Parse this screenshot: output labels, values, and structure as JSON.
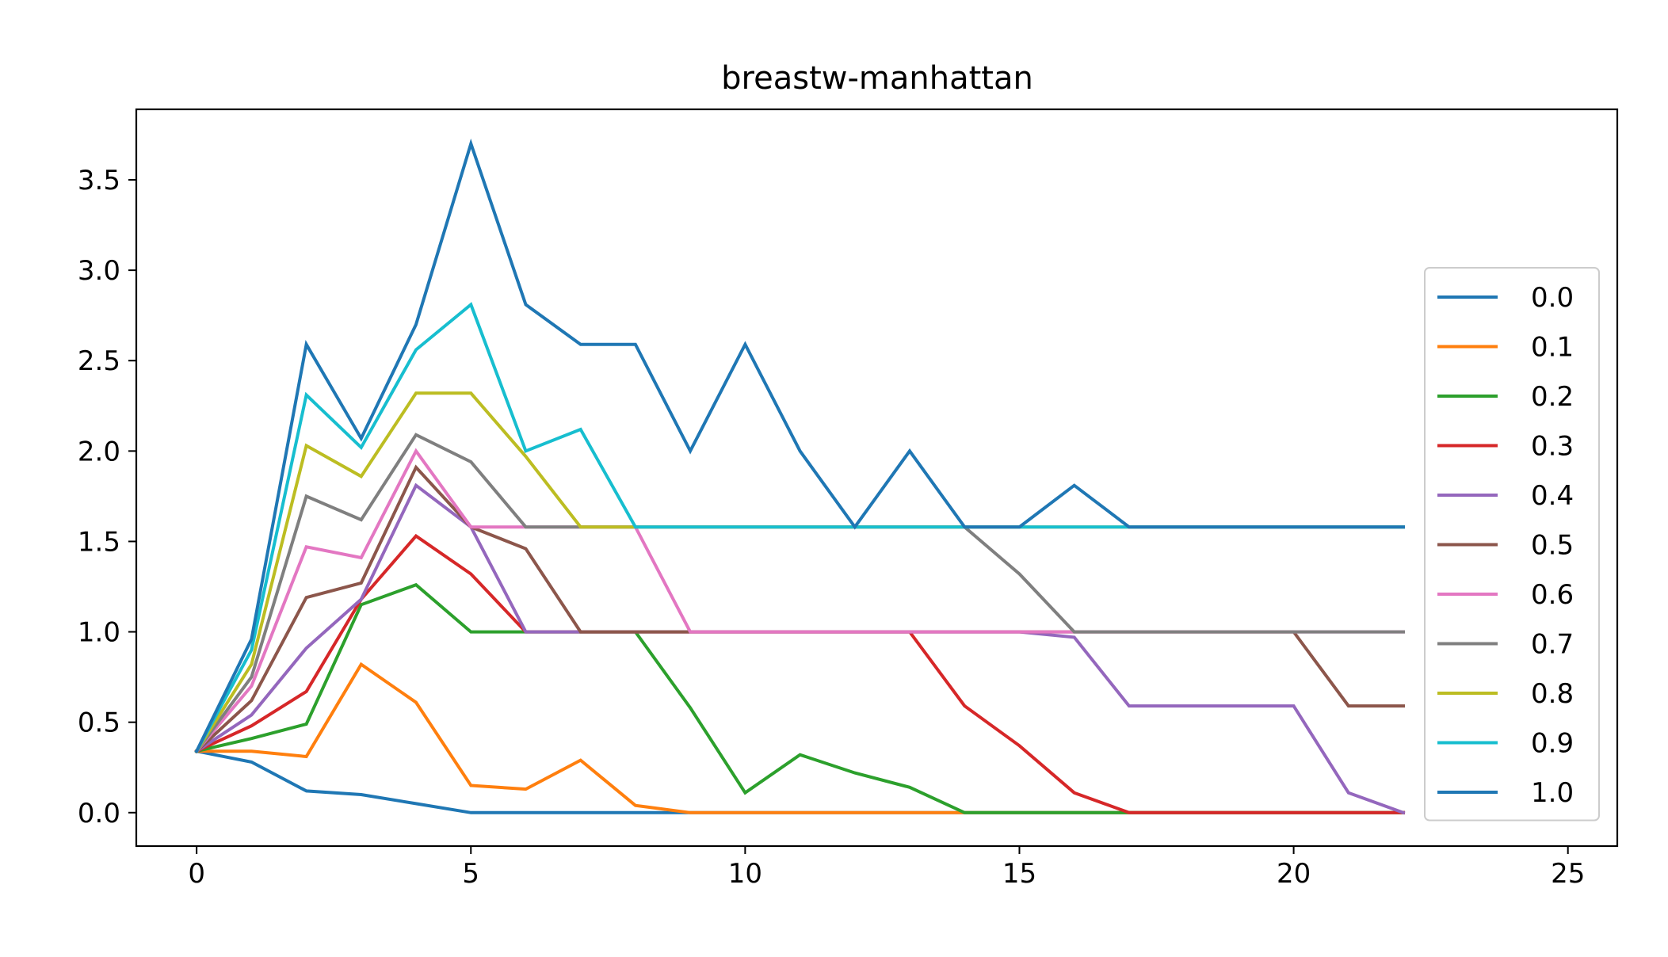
{
  "chart_data": {
    "type": "line",
    "title": "breastw-manhattan",
    "xlabel": "",
    "ylabel": "",
    "xlim": [
      -1.1,
      25.9
    ],
    "ylim": [
      -0.185,
      3.89
    ],
    "xticks": [
      0,
      5,
      10,
      15,
      20,
      25
    ],
    "yticks": [
      0.0,
      0.5,
      1.0,
      1.5,
      2.0,
      2.5,
      3.0,
      3.5
    ],
    "xtick_labels": [
      "0",
      "5",
      "10",
      "15",
      "20",
      "25"
    ],
    "ytick_labels": [
      "0.0",
      "0.5",
      "1.0",
      "1.5",
      "2.0",
      "2.5",
      "3.0",
      "3.5"
    ],
    "grid": false,
    "legend_position": "center-right",
    "x": [
      0,
      1,
      2,
      3,
      4,
      5,
      6,
      7,
      8,
      9,
      10,
      11,
      12,
      13,
      14,
      15,
      16,
      17,
      18,
      19,
      20,
      21,
      22
    ],
    "series": [
      {
        "name": "0.0",
        "color": "#1f77b4",
        "values": [
          0.34,
          0.28,
          0.12,
          0.1,
          0.05,
          0.0,
          0.0,
          0.0,
          0.0,
          0.0,
          0.0,
          0.0,
          0.0,
          0.0,
          0.0,
          0.0,
          0.0,
          0.0,
          0.0,
          0.0,
          0.0,
          0.0,
          0.0
        ]
      },
      {
        "name": "0.1",
        "color": "#ff7f0e",
        "values": [
          0.34,
          0.34,
          0.31,
          0.82,
          0.61,
          0.15,
          0.13,
          0.29,
          0.04,
          0.0,
          0.0,
          0.0,
          0.0,
          0.0,
          0.0,
          0.0,
          0.0,
          0.0,
          0.0,
          0.0,
          0.0,
          0.0,
          0.0
        ]
      },
      {
        "name": "0.2",
        "color": "#2ca02c",
        "values": [
          0.34,
          0.41,
          0.49,
          1.15,
          1.26,
          1.0,
          1.0,
          1.0,
          1.0,
          0.58,
          0.11,
          0.32,
          0.22,
          0.14,
          0.0,
          0.0,
          0.0,
          0.0,
          0.0,
          0.0,
          0.0,
          0.0,
          0.0
        ]
      },
      {
        "name": "0.3",
        "color": "#d62728",
        "values": [
          0.34,
          0.48,
          0.67,
          1.18,
          1.53,
          1.32,
          1.0,
          1.0,
          1.0,
          1.0,
          1.0,
          1.0,
          1.0,
          1.0,
          0.59,
          0.37,
          0.11,
          0.0,
          0.0,
          0.0,
          0.0,
          0.0,
          0.0
        ]
      },
      {
        "name": "0.4",
        "color": "#9467bd",
        "values": [
          0.34,
          0.54,
          0.91,
          1.18,
          1.81,
          1.58,
          1.0,
          1.0,
          1.0,
          1.0,
          1.0,
          1.0,
          1.0,
          1.0,
          1.0,
          1.0,
          0.97,
          0.59,
          0.59,
          0.59,
          0.59,
          0.11,
          0.0
        ]
      },
      {
        "name": "0.5",
        "color": "#8c564b",
        "values": [
          0.34,
          0.62,
          1.19,
          1.27,
          1.91,
          1.58,
          1.46,
          1.0,
          1.0,
          1.0,
          1.0,
          1.0,
          1.0,
          1.0,
          1.0,
          1.0,
          1.0,
          1.0,
          1.0,
          1.0,
          1.0,
          0.59,
          0.59
        ]
      },
      {
        "name": "0.6",
        "color": "#e377c2",
        "values": [
          0.34,
          0.7,
          1.47,
          1.41,
          2.0,
          1.58,
          1.58,
          1.58,
          1.58,
          1.0,
          1.0,
          1.0,
          1.0,
          1.0,
          1.0,
          1.0,
          1.0,
          1.0,
          1.0,
          1.0,
          1.0,
          1.0,
          1.0
        ]
      },
      {
        "name": "0.7",
        "color": "#7f7f7f",
        "values": [
          0.34,
          0.75,
          1.75,
          1.62,
          2.09,
          1.94,
          1.58,
          1.58,
          1.58,
          1.58,
          1.58,
          1.58,
          1.58,
          1.58,
          1.58,
          1.32,
          1.0,
          1.0,
          1.0,
          1.0,
          1.0,
          1.0,
          1.0
        ]
      },
      {
        "name": "0.8",
        "color": "#bcbd22",
        "values": [
          0.34,
          0.82,
          2.03,
          1.86,
          2.32,
          2.32,
          1.97,
          1.58,
          1.58,
          1.58,
          1.58,
          1.58,
          1.58,
          1.58,
          1.58,
          1.58,
          1.58,
          1.58,
          1.58,
          1.58,
          1.58,
          1.58,
          1.58
        ]
      },
      {
        "name": "0.9",
        "color": "#17becf",
        "values": [
          0.34,
          0.9,
          2.31,
          2.02,
          2.56,
          2.81,
          2.0,
          2.12,
          1.58,
          1.58,
          1.58,
          1.58,
          1.58,
          1.58,
          1.58,
          1.58,
          1.58,
          1.58,
          1.58,
          1.58,
          1.58,
          1.58,
          1.58
        ]
      },
      {
        "name": "1.0",
        "color": "#1f77b4",
        "values": [
          0.34,
          0.96,
          2.59,
          2.07,
          2.7,
          3.7,
          2.81,
          2.59,
          2.59,
          2.0,
          2.59,
          2.0,
          1.58,
          2.0,
          1.58,
          1.58,
          1.81,
          1.58,
          1.58,
          1.58,
          1.58,
          1.58,
          1.58
        ]
      }
    ]
  }
}
